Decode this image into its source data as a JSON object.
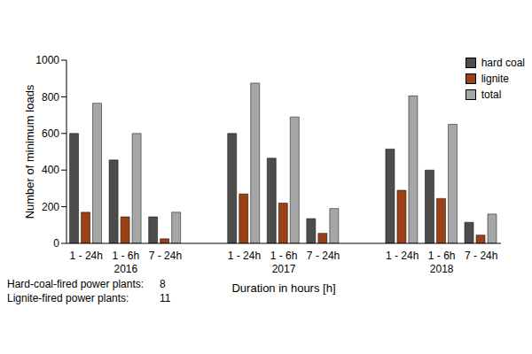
{
  "chart_data": {
    "type": "bar",
    "categories": [
      "1 - 24h",
      "1 - 6h",
      "7 - 24h",
      null,
      "1 - 24h",
      "1 - 6h",
      "7 - 24h",
      null,
      "1 - 24h",
      "1 - 6h",
      "7 - 24h"
    ],
    "groups": [
      "2016",
      "2017",
      "2018"
    ],
    "series": [
      {
        "name": "hard coal",
        "color": "#4d4d4d",
        "values": [
          600,
          455,
          145,
          null,
          600,
          465,
          135,
          null,
          515,
          400,
          115
        ]
      },
      {
        "name": "lignite",
        "color": "#9a4216",
        "values": [
          170,
          145,
          25,
          null,
          270,
          220,
          55,
          null,
          290,
          245,
          45
        ]
      },
      {
        "name": "total",
        "color": "#a6a6a6",
        "values": [
          765,
          600,
          170,
          null,
          875,
          690,
          190,
          null,
          805,
          650,
          160
        ]
      }
    ],
    "ylim": [
      0,
      1000
    ],
    "yticks": [
      0,
      200,
      400,
      600,
      800,
      1000
    ],
    "y_label": "Number of minimum loads",
    "x_label": "Duration in hours [h]",
    "legend": "upper right",
    "grid": false,
    "annotations": [
      {
        "label": "Hard-coal-fired power plants:",
        "value": 8
      },
      {
        "label": "Lignite-fired power plants:",
        "value": 11
      }
    ]
  }
}
